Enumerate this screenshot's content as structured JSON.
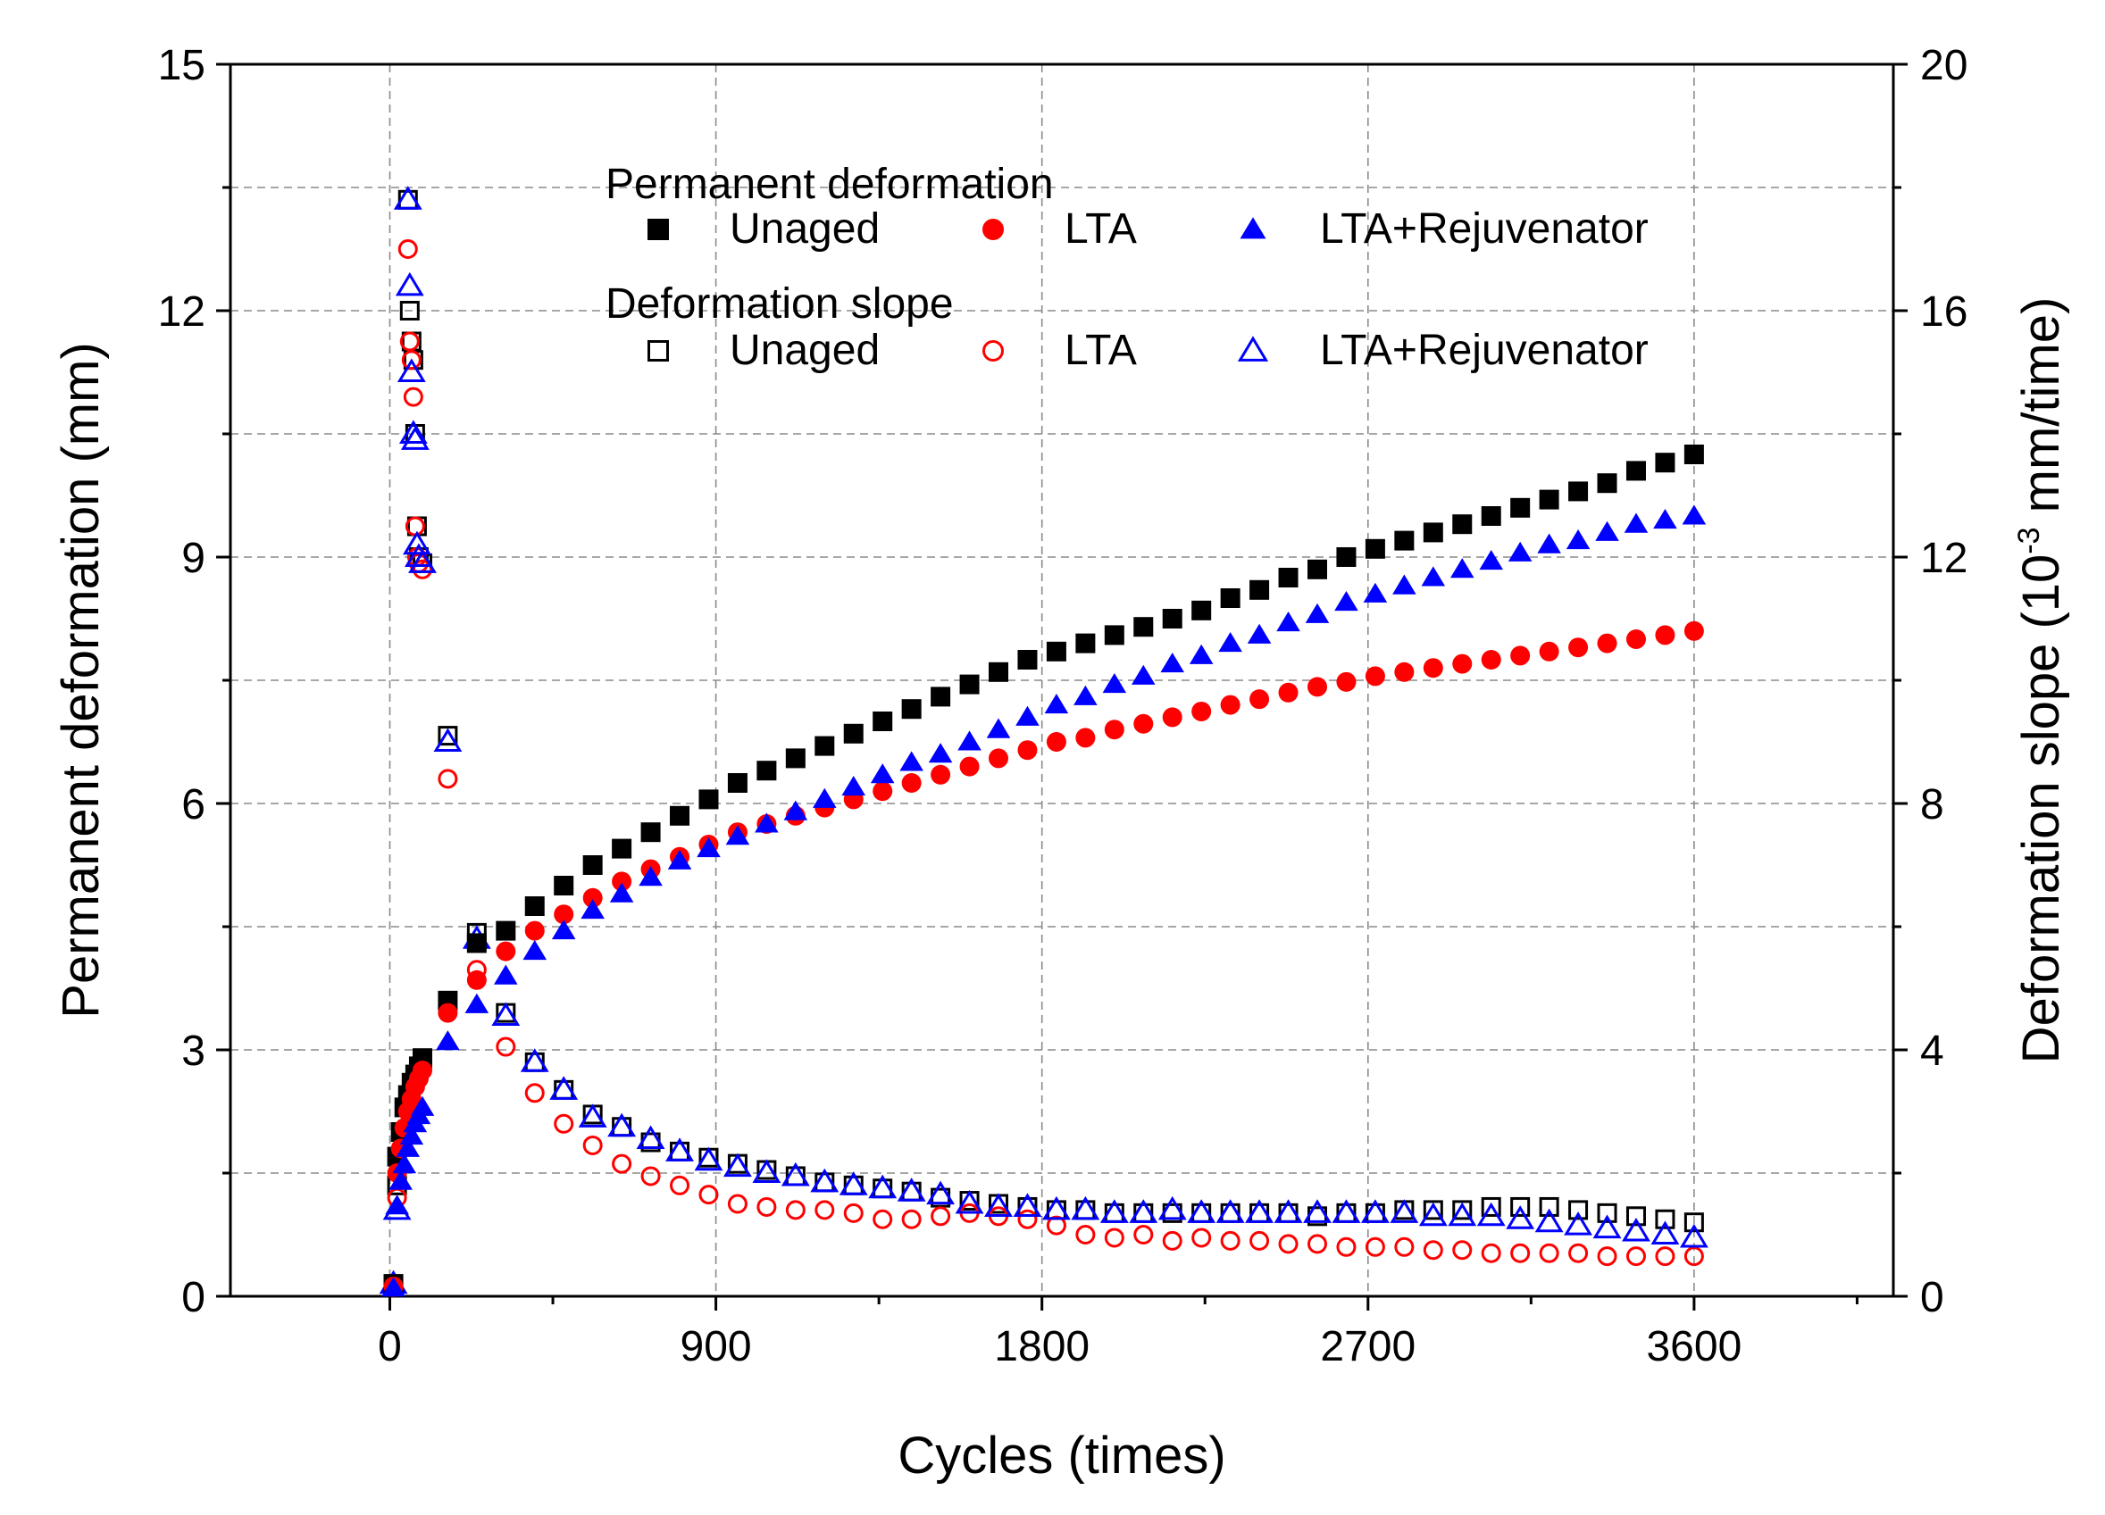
{
  "chart_data": {
    "type": "scatter",
    "xlabel": "Cycles (times)",
    "ylabel": "Permanent deformation (mm)",
    "y2label_main": "Deformation slope (10",
    "y2label_exp": "-3",
    "y2label_unit": " mm/time)",
    "xlim": [
      -440,
      4150
    ],
    "ylim": [
      0,
      15
    ],
    "y2lim": [
      0,
      20
    ],
    "x_ticks": [
      0,
      900,
      1800,
      2700,
      3600
    ],
    "x_tick_labels": [
      "0",
      "900",
      "1800",
      "2700",
      "3600"
    ],
    "y_ticks": [
      0,
      3,
      6,
      9,
      12,
      15
    ],
    "y_tick_labels": [
      "0",
      "3",
      "6",
      "9",
      "12",
      "15"
    ],
    "y2_ticks": [
      0,
      4,
      8,
      12,
      16,
      20
    ],
    "y2_tick_labels": [
      "0",
      "4",
      "8",
      "12",
      "16",
      "20"
    ],
    "grid": true,
    "legend": {
      "placement": "top-right",
      "group1_title": "Permanent deformation",
      "group2_title": "Deformation slope",
      "labels": [
        "Unaged",
        "LTA",
        "LTA+Rejuvenator"
      ]
    },
    "colors": {
      "unaged": "#000000",
      "lta": "#ff0000",
      "rejuvenator": "#0000ff"
    },
    "series": [
      {
        "name": "Unaged",
        "group": "Permanent deformation",
        "axis": "left",
        "marker": "filled-square",
        "color": "#000000",
        "x": [
          10,
          20,
          30,
          40,
          50,
          60,
          70,
          80,
          90,
          160,
          240,
          320,
          400,
          480,
          560,
          640,
          720,
          800,
          880,
          960,
          1040,
          1120,
          1200,
          1280,
          1360,
          1440,
          1520,
          1600,
          1680,
          1760,
          1840,
          1920,
          2000,
          2080,
          2160,
          2240,
          2320,
          2400,
          2480,
          2560,
          2640,
          2720,
          2800,
          2880,
          2960,
          3040,
          3120,
          3200,
          3280,
          3360,
          3440,
          3520,
          3600
        ],
        "y": [
          0.15,
          1.7,
          2.0,
          2.3,
          2.45,
          2.6,
          2.7,
          2.8,
          2.9,
          3.6,
          4.3,
          4.45,
          4.75,
          5.0,
          5.25,
          5.45,
          5.65,
          5.85,
          6.05,
          6.25,
          6.4,
          6.55,
          6.7,
          6.85,
          7.0,
          7.15,
          7.3,
          7.45,
          7.6,
          7.75,
          7.85,
          7.95,
          8.05,
          8.15,
          8.25,
          8.35,
          8.5,
          8.6,
          8.75,
          8.85,
          9.0,
          9.1,
          9.2,
          9.3,
          9.4,
          9.5,
          9.6,
          9.7,
          9.8,
          9.9,
          10.05,
          10.15,
          10.25
        ]
      },
      {
        "name": "LTA",
        "group": "Permanent deformation",
        "axis": "left",
        "marker": "filled-circle",
        "color": "#ff0000",
        "x": [
          10,
          20,
          30,
          40,
          50,
          60,
          70,
          80,
          90,
          160,
          240,
          320,
          400,
          480,
          560,
          640,
          720,
          800,
          880,
          960,
          1040,
          1120,
          1200,
          1280,
          1360,
          1440,
          1520,
          1600,
          1680,
          1760,
          1840,
          1920,
          2000,
          2080,
          2160,
          2240,
          2320,
          2400,
          2480,
          2560,
          2640,
          2720,
          2800,
          2880,
          2960,
          3040,
          3120,
          3200,
          3280,
          3360,
          3440,
          3520,
          3600
        ],
        "y": [
          0.12,
          1.5,
          1.8,
          2.05,
          2.25,
          2.4,
          2.55,
          2.65,
          2.75,
          3.45,
          3.85,
          4.2,
          4.45,
          4.65,
          4.85,
          5.05,
          5.2,
          5.35,
          5.5,
          5.65,
          5.75,
          5.85,
          5.95,
          6.05,
          6.15,
          6.25,
          6.35,
          6.45,
          6.55,
          6.65,
          6.75,
          6.8,
          6.9,
          6.97,
          7.05,
          7.12,
          7.2,
          7.27,
          7.35,
          7.42,
          7.48,
          7.55,
          7.6,
          7.65,
          7.7,
          7.75,
          7.8,
          7.85,
          7.9,
          7.95,
          8.0,
          8.05,
          8.1
        ]
      },
      {
        "name": "LTA+Rejuvenator",
        "group": "Permanent deformation",
        "axis": "left",
        "marker": "filled-triangle",
        "color": "#0000ff",
        "x": [
          10,
          20,
          30,
          40,
          50,
          60,
          70,
          80,
          90,
          160,
          240,
          320,
          400,
          480,
          560,
          640,
          720,
          800,
          880,
          960,
          1040,
          1120,
          1200,
          1280,
          1360,
          1440,
          1520,
          1600,
          1680,
          1760,
          1840,
          1920,
          2000,
          2080,
          2160,
          2240,
          2320,
          2400,
          2480,
          2560,
          2640,
          2720,
          2800,
          2880,
          2960,
          3040,
          3120,
          3200,
          3280,
          3360,
          3440,
          3520,
          3600
        ],
        "y": [
          0.1,
          1.1,
          1.4,
          1.6,
          1.8,
          1.95,
          2.1,
          2.2,
          2.3,
          3.1,
          3.55,
          3.9,
          4.2,
          4.45,
          4.7,
          4.9,
          5.1,
          5.3,
          5.45,
          5.6,
          5.75,
          5.9,
          6.05,
          6.2,
          6.35,
          6.5,
          6.6,
          6.75,
          6.9,
          7.05,
          7.2,
          7.3,
          7.45,
          7.55,
          7.7,
          7.8,
          7.95,
          8.05,
          8.2,
          8.3,
          8.45,
          8.55,
          8.65,
          8.75,
          8.85,
          8.95,
          9.05,
          9.15,
          9.2,
          9.3,
          9.4,
          9.45,
          9.5
        ]
      },
      {
        "name": "Unaged",
        "group": "Deformation slope",
        "axis": "right",
        "marker": "open-square",
        "color": "#000000",
        "x": [
          10,
          20,
          50,
          55,
          60,
          65,
          70,
          75,
          80,
          90,
          160,
          240,
          320,
          400,
          480,
          560,
          640,
          720,
          800,
          880,
          960,
          1040,
          1120,
          1200,
          1280,
          1360,
          1440,
          1520,
          1600,
          1680,
          1760,
          1840,
          1920,
          2000,
          2080,
          2160,
          2240,
          2320,
          2400,
          2480,
          2560,
          2640,
          2720,
          2800,
          2880,
          2960,
          3040,
          3120,
          3200,
          3280,
          3360,
          3440,
          3520,
          3600
        ],
        "y": [
          0.2,
          1.8,
          17.8,
          16.0,
          15.5,
          15.2,
          14.0,
          12.5,
          12.0,
          11.9,
          9.1,
          5.9,
          4.6,
          3.8,
          3.35,
          2.95,
          2.75,
          2.5,
          2.35,
          2.25,
          2.15,
          2.05,
          1.95,
          1.85,
          1.8,
          1.75,
          1.7,
          1.6,
          1.55,
          1.5,
          1.45,
          1.4,
          1.4,
          1.35,
          1.35,
          1.35,
          1.35,
          1.35,
          1.35,
          1.35,
          1.3,
          1.35,
          1.35,
          1.4,
          1.4,
          1.4,
          1.45,
          1.45,
          1.45,
          1.4,
          1.35,
          1.3,
          1.25,
          1.2
        ]
      },
      {
        "name": "LTA",
        "group": "Deformation slope",
        "axis": "right",
        "marker": "open-circle",
        "color": "#ff0000",
        "x": [
          10,
          20,
          50,
          55,
          60,
          65,
          70,
          75,
          80,
          90,
          160,
          240,
          320,
          400,
          480,
          560,
          640,
          720,
          800,
          880,
          960,
          1040,
          1120,
          1200,
          1280,
          1360,
          1440,
          1520,
          1600,
          1680,
          1760,
          1840,
          1920,
          2000,
          2080,
          2160,
          2240,
          2320,
          2400,
          2480,
          2560,
          2640,
          2720,
          2800,
          2880,
          2960,
          3040,
          3120,
          3200,
          3280,
          3360,
          3440,
          3520,
          3600
        ],
        "y": [
          0.15,
          1.6,
          17.0,
          15.5,
          15.2,
          14.6,
          12.5,
          12.0,
          11.9,
          11.8,
          8.4,
          5.3,
          4.05,
          3.3,
          2.8,
          2.45,
          2.15,
          1.95,
          1.8,
          1.65,
          1.5,
          1.45,
          1.4,
          1.4,
          1.35,
          1.25,
          1.25,
          1.3,
          1.35,
          1.3,
          1.25,
          1.15,
          1.0,
          0.95,
          1.0,
          0.9,
          0.95,
          0.9,
          0.9,
          0.85,
          0.85,
          0.8,
          0.8,
          0.8,
          0.75,
          0.75,
          0.7,
          0.7,
          0.7,
          0.7,
          0.65,
          0.65,
          0.65,
          0.65
        ]
      },
      {
        "name": "LTA+Rejuvenator",
        "group": "Deformation slope",
        "axis": "right",
        "marker": "open-triangle",
        "color": "#0000ff",
        "x": [
          10,
          20,
          50,
          55,
          60,
          65,
          70,
          75,
          80,
          90,
          160,
          240,
          320,
          400,
          480,
          560,
          640,
          720,
          800,
          880,
          960,
          1040,
          1120,
          1200,
          1280,
          1360,
          1440,
          1520,
          1600,
          1680,
          1760,
          1840,
          1920,
          2000,
          2080,
          2160,
          2240,
          2320,
          2400,
          2480,
          2560,
          2640,
          2720,
          2800,
          2880,
          2960,
          3040,
          3120,
          3200,
          3280,
          3360,
          3440,
          3520,
          3600
        ],
        "y": [
          0.2,
          1.4,
          17.8,
          16.4,
          15.0,
          14.0,
          13.9,
          12.2,
          12.0,
          11.9,
          9.0,
          5.8,
          4.55,
          3.8,
          3.35,
          2.9,
          2.75,
          2.55,
          2.35,
          2.2,
          2.1,
          2.0,
          1.95,
          1.85,
          1.8,
          1.75,
          1.7,
          1.65,
          1.5,
          1.45,
          1.45,
          1.4,
          1.4,
          1.35,
          1.35,
          1.4,
          1.35,
          1.35,
          1.35,
          1.35,
          1.35,
          1.35,
          1.35,
          1.35,
          1.3,
          1.3,
          1.3,
          1.25,
          1.2,
          1.15,
          1.1,
          1.05,
          1.0,
          0.95
        ]
      }
    ]
  }
}
